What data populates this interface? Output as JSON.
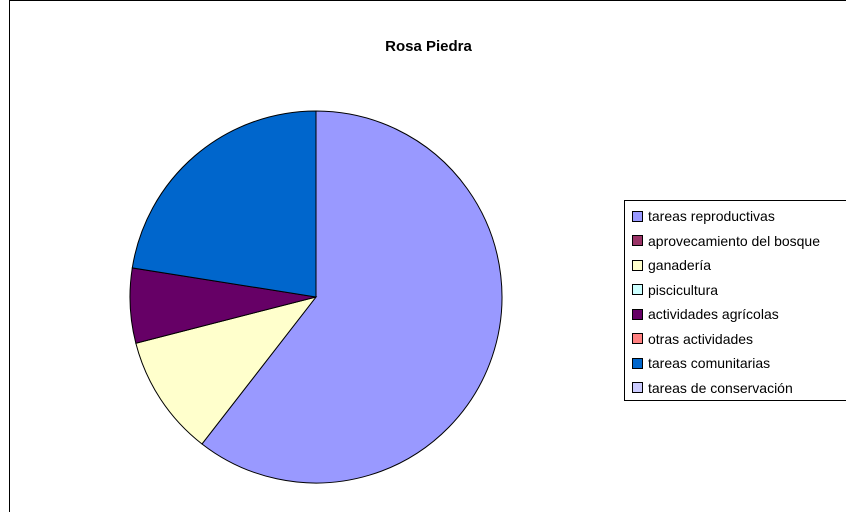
{
  "chart_data": {
    "type": "pie",
    "title": "Rosa Piedra",
    "start_angle_deg": 0,
    "direction": "clockwise",
    "legend_position": "right",
    "slices": [
      {
        "label": "tareas reproductivas",
        "value": 60.5,
        "color": "#9999FF"
      },
      {
        "label": "aprovecamiento del bosque",
        "value": 0,
        "color": "#993366"
      },
      {
        "label": "ganadería",
        "value": 10.5,
        "color": "#FFFFCC"
      },
      {
        "label": "piscicultura",
        "value": 0,
        "color": "#CCFFFF"
      },
      {
        "label": "actividades agrícolas",
        "value": 6.5,
        "color": "#660066"
      },
      {
        "label": "otras actividades",
        "value": 0,
        "color": "#FF8080"
      },
      {
        "label": "tareas comunitarias",
        "value": 22.5,
        "color": "#0066CC"
      },
      {
        "label": "tareas de conservación",
        "value": 0,
        "color": "#CCCCFF"
      }
    ]
  }
}
